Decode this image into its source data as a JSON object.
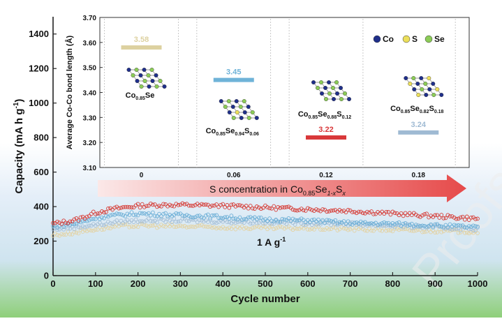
{
  "chart_data": [
    {
      "type": "scatter",
      "xlabel": "Cycle number",
      "ylabel": "Capacity (mA h g",
      "ylabel_sup": "-1",
      "ylabel_end": ")",
      "xlim": [
        0,
        1000
      ],
      "ylim": [
        0,
        1500
      ],
      "x_ticks": [
        0,
        100,
        200,
        300,
        400,
        500,
        600,
        700,
        800,
        900,
        1000
      ],
      "y_ticks": [
        0,
        200,
        400,
        600,
        800,
        1000,
        1200,
        1400
      ],
      "annotation": {
        "text": "1 A g",
        "sup": "-1"
      },
      "arrow_label": {
        "text": "S concentration  in Co",
        "sub1": "0.85",
        "mid": "Se",
        "sub2": "1-x",
        "mid2": "S",
        "sub3": "x"
      },
      "watermark": "Proofs",
      "series": [
        {
          "color": "#d63a34",
          "x": [
            0,
            50,
            80,
            100,
            150,
            200,
            250,
            300,
            400,
            500,
            600,
            700,
            800,
            900,
            1000
          ],
          "y": [
            300,
            320,
            345,
            365,
            390,
            405,
            410,
            410,
            405,
            395,
            385,
            375,
            360,
            345,
            330
          ]
        },
        {
          "color": "#6aaed6",
          "x": [
            0,
            50,
            80,
            100,
            150,
            200,
            250,
            300,
            400,
            500,
            600,
            700,
            800,
            900,
            1000
          ],
          "y": [
            285,
            300,
            320,
            335,
            350,
            360,
            355,
            350,
            340,
            325,
            320,
            305,
            300,
            290,
            280
          ]
        },
        {
          "color": "#a6bfd6",
          "x": [
            0,
            50,
            100,
            150,
            200,
            300,
            400,
            500,
            600,
            700,
            800,
            900,
            1000
          ],
          "y": [
            270,
            280,
            295,
            310,
            320,
            320,
            315,
            310,
            305,
            300,
            290,
            280,
            270
          ]
        },
        {
          "color": "#e3d2a1",
          "x": [
            0,
            50,
            100,
            150,
            200,
            300,
            400,
            500,
            600,
            700,
            800,
            900,
            1000
          ],
          "y": [
            235,
            250,
            270,
            285,
            290,
            285,
            280,
            275,
            275,
            270,
            265,
            260,
            255
          ]
        }
      ]
    },
    {
      "type": "bar",
      "ylabel": "Average Co-Co bond length (Å)",
      "categories": [
        "0",
        "0.06",
        "0.12",
        "0.18"
      ],
      "values": [
        3.58,
        3.45,
        3.22,
        3.24
      ],
      "value_labels": [
        "3.58",
        "3.45",
        "3.22",
        "3.24"
      ],
      "colors": [
        "#ddd1a0",
        "#6fb3d8",
        "#d9383a",
        "#9fbad3"
      ],
      "ylim": [
        3.1,
        3.7
      ],
      "y_ticks": [
        "3.10",
        "3.20",
        "3.30",
        "3.40",
        "3.50",
        "3.60",
        "3.70"
      ],
      "legend": [
        {
          "label": "Co",
          "color": "#1f2f8a"
        },
        {
          "label": "S",
          "color": "#ecdf5a"
        },
        {
          "label": "Se",
          "color": "#8ccc57"
        }
      ],
      "structure_labels": [
        {
          "main": "Co",
          "sub1": "0.85",
          "mid": "Se",
          "sub2": "",
          "mid2": "",
          "sub3": ""
        },
        {
          "main": "Co",
          "sub1": "0.85",
          "mid": "Se",
          "sub2": "0.94",
          "mid2": "S",
          "sub3": "0.06"
        },
        {
          "main": "Co",
          "sub1": "0.85",
          "mid": "Se",
          "sub2": "0.88",
          "mid2": "S",
          "sub3": "0.12"
        },
        {
          "main": "Co",
          "sub1": "0.85",
          "mid": "Se",
          "sub2": "0.82",
          "mid2": "S",
          "sub3": "0.18"
        }
      ]
    }
  ]
}
